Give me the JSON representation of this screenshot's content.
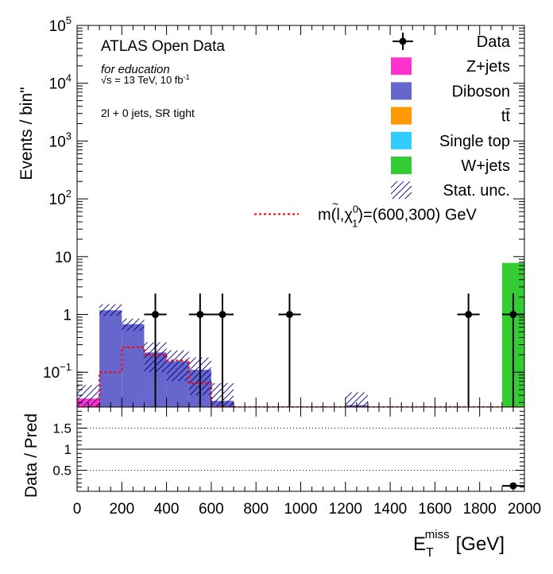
{
  "chart_data": {
    "type": "bar",
    "subtype": "stacked-histogram-with-ratio",
    "main_ylabel": "Events / bin\"",
    "ratio_ylabel": "Data / Pred",
    "xlabel_main": "E",
    "xlabel_sub": "T",
    "xlabel_sup": "miss",
    "xlabel_unit": "[GeV]",
    "xlim": [
      0,
      2000
    ],
    "ylim": [
      0.025,
      100000
    ],
    "yscale": "log",
    "ratio_ylim": [
      0,
      2
    ],
    "bin_edges": [
      0,
      100,
      200,
      300,
      400,
      500,
      600,
      700,
      800,
      900,
      1000,
      1100,
      1200,
      1300,
      1400,
      1500,
      1600,
      1700,
      1800,
      1900,
      2000
    ],
    "x_ticks": [
      "0",
      "200",
      "400",
      "600",
      "800",
      "1000",
      "1200",
      "1400",
      "1600",
      "1800",
      "2000"
    ],
    "y_ticks": [
      "10",
      "1",
      "10"
    ],
    "y_tick_exponents": {
      "e5": "5",
      "e4": "4",
      "e3": "3",
      "e2": "2",
      "em1": "−1"
    },
    "y_tick_base": "10",
    "ratio_ticks": [
      "0.5",
      "1",
      "1.5"
    ],
    "texts": {
      "experiment": "ATLAS Open Data",
      "purpose": "for education",
      "energy": "√s = 13 TeV, 10 fb",
      "lumi_exp": "-1",
      "region": "2l + 0 jets, SR tight"
    },
    "series": [
      {
        "name": "Z+jets",
        "color": "#ff33cc",
        "values": [
          0.035,
          0,
          0,
          0,
          0,
          0,
          0,
          0,
          0,
          0,
          0,
          0,
          0,
          0,
          0,
          0,
          0,
          0,
          0,
          0
        ]
      },
      {
        "name": "Diboson",
        "color": "#6666cc",
        "values": [
          0,
          1.18,
          0.68,
          0.22,
          0.155,
          0.11,
          0.032,
          0,
          0,
          0,
          0,
          0,
          0.027,
          0,
          0,
          0,
          0,
          0,
          0,
          0
        ]
      },
      {
        "name": "tt̄",
        "color": "#ff9900",
        "values": [
          0,
          0,
          0,
          0,
          0,
          0,
          0,
          0,
          0,
          0,
          0,
          0,
          0,
          0,
          0,
          0,
          0,
          0,
          0,
          0
        ]
      },
      {
        "name": "Single top",
        "color": "#33ccff",
        "values": [
          0,
          0,
          0,
          0,
          0,
          0,
          0,
          0,
          0,
          0,
          0,
          0,
          0,
          0,
          0,
          0,
          0,
          0,
          0,
          0
        ]
      },
      {
        "name": "W+jets",
        "color": "#33cc33",
        "values": [
          0,
          0,
          0,
          0,
          0,
          0,
          0,
          0,
          0,
          0,
          0,
          0,
          0,
          0,
          0,
          0,
          0,
          0,
          0,
          7.8
        ]
      }
    ],
    "stat_unc_hatch": {
      "name": "Stat. unc.",
      "color": "#000080",
      "bands": [
        {
          "x0": 0,
          "x1": 100,
          "lo": 0.025,
          "hi": 0.06
        },
        {
          "x0": 100,
          "x1": 200,
          "lo": 0.95,
          "hi": 1.5
        },
        {
          "x0": 200,
          "x1": 300,
          "lo": 0.52,
          "hi": 0.85
        },
        {
          "x0": 300,
          "x1": 400,
          "lo": 0.1,
          "hi": 0.33
        },
        {
          "x0": 400,
          "x1": 500,
          "lo": 0.07,
          "hi": 0.24
        },
        {
          "x0": 500,
          "x1": 600,
          "lo": 0.04,
          "hi": 0.18
        },
        {
          "x0": 600,
          "x1": 700,
          "lo": 0.025,
          "hi": 0.065
        },
        {
          "x0": 1200,
          "x1": 1300,
          "lo": 0.025,
          "hi": 0.045
        }
      ]
    },
    "signal": {
      "name_prefix": "m(",
      "name_l": "l",
      "name_comma": ",",
      "name_chi": "χ",
      "name_sup": "0",
      "name_sub": "1",
      "name_suffix": ")=(600,300) GeV",
      "color": "#ff0000",
      "values": [
        0.025,
        0.1,
        0.27,
        0.2,
        0.16,
        0.065,
        0.025,
        0.025,
        0.025,
        0.025,
        0.025,
        0.025,
        0.025,
        0.025,
        0.025,
        0.025,
        0.025,
        0.025,
        0.025,
        0.025
      ]
    },
    "data": {
      "name": "Data",
      "points": [
        {
          "x": 350,
          "y": 1,
          "xerr": 50,
          "ylo": 0.025,
          "yhi": 2.3
        },
        {
          "x": 550,
          "y": 1,
          "xerr": 50,
          "ylo": 0.025,
          "yhi": 2.3
        },
        {
          "x": 650,
          "y": 1,
          "xerr": 50,
          "ylo": 0.025,
          "yhi": 2.3
        },
        {
          "x": 950,
          "y": 1,
          "xerr": 50,
          "ylo": 0.025,
          "yhi": 2.3
        },
        {
          "x": 1750,
          "y": 1,
          "xerr": 50,
          "ylo": 0.025,
          "yhi": 2.3
        },
        {
          "x": 1950,
          "y": 1,
          "xerr": 50,
          "ylo": 0.025,
          "yhi": 2.3
        }
      ]
    },
    "ratio_points": [
      {
        "x": 1950,
        "y": 0.13,
        "xerr": 50,
        "yerr": 0.04
      }
    ],
    "legend_position": "top-right",
    "grid": false
  }
}
